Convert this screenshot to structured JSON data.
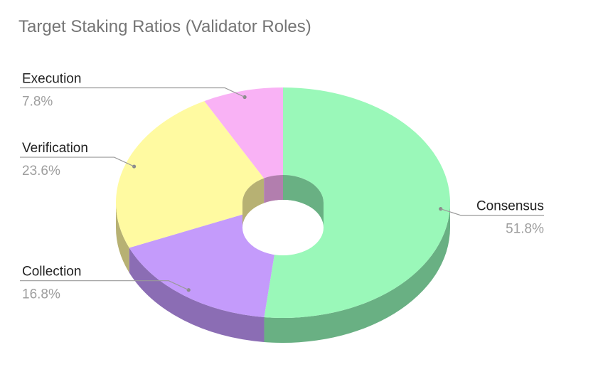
{
  "chart_data": {
    "type": "pie",
    "donut": true,
    "three_d": true,
    "title": "Target Staking Ratios (Validator Roles)",
    "slices": [
      {
        "label": "Consensus",
        "value": 51.8,
        "value_label": "51.8%",
        "color": "#9af8b9",
        "side_color": "#69b083"
      },
      {
        "label": "Collection",
        "value": 16.8,
        "value_label": "16.8%",
        "color": "#c49bfb",
        "side_color": "#8b6db4"
      },
      {
        "label": "Verification",
        "value": 23.6,
        "value_label": "23.6%",
        "color": "#fffaa1",
        "side_color": "#b7b173"
      },
      {
        "label": "Execution",
        "value": 7.8,
        "value_label": "7.8%",
        "color": "#f9b2f5",
        "side_color": "#b27eae"
      }
    ],
    "legend": "none"
  }
}
